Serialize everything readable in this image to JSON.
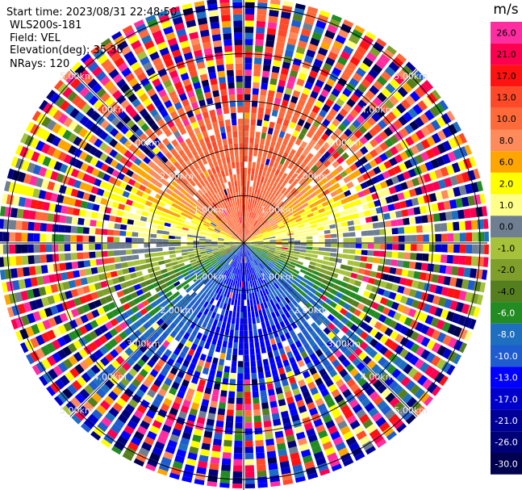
{
  "info": {
    "start_time": "Start time: 2023/08/31 22:48:50",
    "instrument": "WLS200s-181",
    "field": "Field: VEL",
    "elevation": "Elevation(deg): 35.30",
    "nrays": "NRays: 120"
  },
  "colorbar": {
    "unit": "m/s",
    "bins": [
      {
        "label": "26.0",
        "color": "#ff2da0"
      },
      {
        "label": "21.0",
        "color": "#ff0050"
      },
      {
        "label": "17.0",
        "color": "#ff1212"
      },
      {
        "label": "13.0",
        "color": "#ff4a2a"
      },
      {
        "label": "10.0",
        "color": "#ff6a3a"
      },
      {
        "label": "8.0",
        "color": "#ff8a5c"
      },
      {
        "label": "6.0",
        "color": "#ffa500"
      },
      {
        "label": "2.0",
        "color": "#ffff00"
      },
      {
        "label": "1.0",
        "color": "#ffff8a"
      },
      {
        "label": "0.0",
        "color": "#6f7f91"
      },
      {
        "label": "-1.0",
        "color": "#a6c23a"
      },
      {
        "label": "-2.0",
        "color": "#7f9f2a"
      },
      {
        "label": "-4.0",
        "color": "#557f1f"
      },
      {
        "label": "-6.0",
        "color": "#228b22"
      },
      {
        "label": "-8.0",
        "color": "#1f6fc0"
      },
      {
        "label": "-10.0",
        "color": "#1e5ccf"
      },
      {
        "label": "-13.0",
        "color": "#0000ff"
      },
      {
        "label": "-17.0",
        "color": "#0000cc"
      },
      {
        "label": "-21.0",
        "color": "#000099"
      },
      {
        "label": "-26.0",
        "color": "#000077"
      },
      {
        "label": "-30.0",
        "color": "#000050"
      }
    ]
  },
  "chart_data": {
    "type": "heatmap",
    "subtype": "polar-ppi",
    "field": "VEL",
    "unit": "m/s",
    "n_rays": 120,
    "range_rings_km": [
      1.0,
      2.0,
      3.0,
      4.0,
      5.0
    ],
    "range_ring_labels": [
      "1.00km",
      "2.00km",
      "3.00km",
      "4.00km",
      "5.00km"
    ],
    "crosshair": true,
    "pattern": {
      "north_sector": "positive 8 to 17 m/s (orange/red)",
      "east_west": "near 0 to 2 m/s (yellow/grey)",
      "south_sector": "negative -4 to -10 m/s (green/blue)",
      "outer_ranges": "noisy, all values"
    }
  }
}
